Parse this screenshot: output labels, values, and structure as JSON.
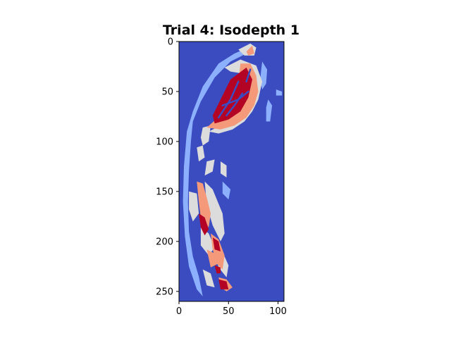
{
  "chart_data": {
    "type": "heatmap",
    "title": "Trial 4: Isodepth 1",
    "xlabel": "",
    "ylabel": "",
    "xlim": [
      0,
      106
    ],
    "ylim": [
      260,
      0
    ],
    "xticks": [
      0,
      50,
      100
    ],
    "yticks": [
      0,
      50,
      100,
      150,
      200,
      250
    ],
    "grid": false,
    "legend": "none",
    "colormap": "coolwarm",
    "levels": [
      {
        "level": 0,
        "color": "#3b4cc0"
      },
      {
        "level": 1,
        "color": "#8db0fe"
      },
      {
        "level": 2,
        "color": "#dddcdc"
      },
      {
        "level": 3,
        "color": "#f49a7b"
      },
      {
        "level": 4,
        "color": "#b40426"
      }
    ],
    "background_level": 0,
    "regions": [
      {
        "level": 1,
        "points": [
          [
            8,
            90
          ],
          [
            14,
            70
          ],
          [
            24,
            45
          ],
          [
            40,
            22
          ],
          [
            56,
            12
          ],
          [
            70,
            6
          ],
          [
            68,
            12
          ],
          [
            52,
            20
          ],
          [
            36,
            36
          ],
          [
            22,
            60
          ],
          [
            14,
            80
          ],
          [
            12,
            100
          ],
          [
            10,
            130
          ],
          [
            9,
            160
          ],
          [
            10,
            190
          ],
          [
            14,
            215
          ],
          [
            20,
            235
          ],
          [
            24,
            255
          ],
          [
            18,
            248
          ],
          [
            10,
            225
          ],
          [
            6,
            195
          ],
          [
            4,
            160
          ],
          [
            5,
            125
          ]
        ]
      },
      {
        "level": 1,
        "points": [
          [
            84,
            20
          ],
          [
            89,
            28
          ],
          [
            88,
            42
          ],
          [
            84,
            48
          ],
          [
            82,
            38
          ],
          [
            83,
            28
          ]
        ]
      },
      {
        "level": 1,
        "points": [
          [
            90,
            58
          ],
          [
            94,
            64
          ],
          [
            92,
            80
          ],
          [
            88,
            80
          ],
          [
            88,
            66
          ]
        ]
      },
      {
        "level": 1,
        "points": [
          [
            98,
            48
          ],
          [
            104,
            50
          ],
          [
            104,
            54
          ],
          [
            98,
            54
          ]
        ]
      },
      {
        "level": 1,
        "points": [
          [
            44,
            140
          ],
          [
            52,
            148
          ],
          [
            50,
            158
          ],
          [
            44,
            152
          ]
        ]
      },
      {
        "level": 2,
        "points": [
          [
            60,
            8
          ],
          [
            72,
            2
          ],
          [
            78,
            6
          ],
          [
            76,
            14
          ],
          [
            66,
            14
          ]
        ]
      },
      {
        "level": 2,
        "points": [
          [
            46,
            26
          ],
          [
            62,
            18
          ],
          [
            78,
            24
          ],
          [
            84,
            40
          ],
          [
            80,
            58
          ],
          [
            74,
            70
          ],
          [
            66,
            80
          ],
          [
            54,
            88
          ],
          [
            40,
            92
          ],
          [
            30,
            90
          ],
          [
            42,
            84
          ],
          [
            56,
            74
          ],
          [
            66,
            62
          ],
          [
            70,
            46
          ],
          [
            64,
            32
          ],
          [
            52,
            30
          ]
        ]
      },
      {
        "level": 2,
        "points": [
          [
            24,
            86
          ],
          [
            32,
            84
          ],
          [
            30,
            100
          ],
          [
            24,
            104
          ],
          [
            22,
            96
          ]
        ]
      },
      {
        "level": 2,
        "points": [
          [
            18,
            106
          ],
          [
            24,
            104
          ],
          [
            26,
            116
          ],
          [
            20,
            120
          ]
        ]
      },
      {
        "level": 2,
        "points": [
          [
            28,
            120
          ],
          [
            36,
            118
          ],
          [
            34,
            130
          ],
          [
            26,
            134
          ]
        ]
      },
      {
        "level": 2,
        "points": [
          [
            42,
            120
          ],
          [
            48,
            124
          ],
          [
            48,
            136
          ],
          [
            42,
            132
          ]
        ]
      },
      {
        "level": 2,
        "points": [
          [
            10,
            150
          ],
          [
            18,
            152
          ],
          [
            20,
            172
          ],
          [
            14,
            180
          ],
          [
            10,
            168
          ]
        ]
      },
      {
        "level": 2,
        "points": [
          [
            26,
            140
          ],
          [
            34,
            148
          ],
          [
            44,
            172
          ],
          [
            46,
            192
          ],
          [
            42,
            200
          ],
          [
            34,
            184
          ],
          [
            28,
            164
          ]
        ]
      },
      {
        "level": 2,
        "points": [
          [
            22,
            186
          ],
          [
            30,
            192
          ],
          [
            36,
            206
          ],
          [
            30,
            214
          ],
          [
            22,
            204
          ]
        ]
      },
      {
        "level": 2,
        "points": [
          [
            34,
            202
          ],
          [
            42,
            206
          ],
          [
            50,
            224
          ],
          [
            48,
            236
          ],
          [
            40,
            226
          ]
        ]
      },
      {
        "level": 2,
        "points": [
          [
            24,
            228
          ],
          [
            32,
            232
          ],
          [
            36,
            246
          ],
          [
            28,
            244
          ]
        ]
      },
      {
        "level": 3,
        "points": [
          [
            68,
            10
          ],
          [
            74,
            4
          ],
          [
            76,
            12
          ],
          [
            70,
            14
          ]
        ]
      },
      {
        "level": 3,
        "points": [
          [
            62,
            22
          ],
          [
            72,
            22
          ],
          [
            78,
            34
          ],
          [
            80,
            50
          ],
          [
            76,
            64
          ],
          [
            68,
            76
          ],
          [
            56,
            84
          ],
          [
            42,
            88
          ],
          [
            28,
            86
          ],
          [
            44,
            72
          ],
          [
            54,
            56
          ],
          [
            60,
            40
          ]
        ]
      },
      {
        "level": 3,
        "points": [
          [
            18,
            140
          ],
          [
            24,
            142
          ],
          [
            28,
            156
          ],
          [
            32,
            172
          ],
          [
            30,
            186
          ],
          [
            22,
            176
          ],
          [
            20,
            160
          ]
        ]
      },
      {
        "level": 3,
        "points": [
          [
            32,
            192
          ],
          [
            40,
            198
          ],
          [
            46,
            214
          ],
          [
            44,
            228
          ],
          [
            38,
            222
          ],
          [
            34,
            208
          ]
        ]
      },
      {
        "level": 3,
        "points": [
          [
            40,
            236
          ],
          [
            48,
            238
          ],
          [
            54,
            246
          ],
          [
            48,
            250
          ],
          [
            42,
            246
          ]
        ]
      },
      {
        "level": 3,
        "points": [
          [
            28,
            208
          ],
          [
            36,
            212
          ],
          [
            40,
            222
          ],
          [
            32,
            226
          ]
        ]
      },
      {
        "level": 4,
        "points": [
          [
            52,
            38
          ],
          [
            68,
            26
          ],
          [
            74,
            38
          ],
          [
            70,
            56
          ],
          [
            62,
            70
          ],
          [
            50,
            78
          ],
          [
            36,
            82
          ],
          [
            34,
            74
          ],
          [
            42,
            58
          ]
        ]
      },
      {
        "level": 4,
        "points": [
          [
            20,
            172
          ],
          [
            26,
            176
          ],
          [
            30,
            188
          ],
          [
            26,
            194
          ],
          [
            22,
            186
          ]
        ]
      },
      {
        "level": 4,
        "points": [
          [
            34,
            196
          ],
          [
            40,
            200
          ],
          [
            42,
            210
          ],
          [
            36,
            208
          ]
        ]
      },
      {
        "level": 4,
        "points": [
          [
            36,
            224
          ],
          [
            42,
            226
          ],
          [
            42,
            232
          ],
          [
            38,
            232
          ]
        ]
      },
      {
        "level": 4,
        "points": [
          [
            40,
            238
          ],
          [
            48,
            240
          ],
          [
            50,
            248
          ],
          [
            42,
            248
          ]
        ]
      }
    ],
    "streaks": [
      {
        "level": 0,
        "points": [
          [
            60,
            40
          ],
          [
            52,
            58
          ],
          [
            40,
            76
          ]
        ]
      },
      {
        "level": 0,
        "points": [
          [
            64,
            52
          ],
          [
            56,
            64
          ],
          [
            48,
            74
          ]
        ]
      },
      {
        "level": 0,
        "points": [
          [
            72,
            28
          ],
          [
            68,
            40
          ]
        ]
      },
      {
        "level": 0,
        "points": [
          [
            44,
            64
          ],
          [
            60,
            58
          ],
          [
            70,
            50
          ]
        ]
      }
    ]
  }
}
